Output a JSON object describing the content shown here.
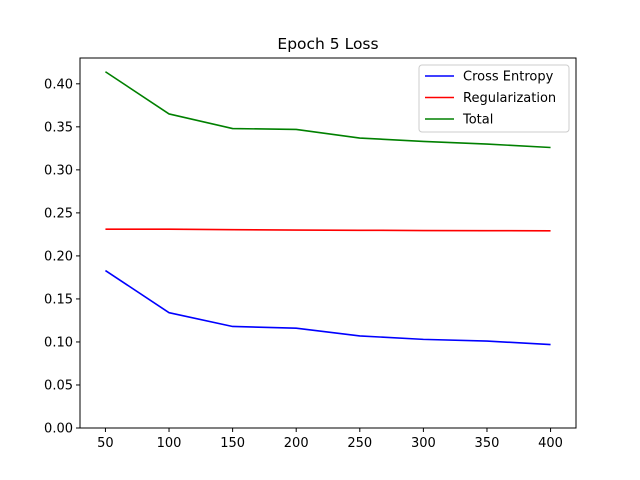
{
  "chart_data": {
    "type": "line",
    "title": "Epoch 5 Loss",
    "xlabel": "",
    "ylabel": "",
    "x": [
      50,
      100,
      150,
      200,
      250,
      300,
      350,
      400
    ],
    "xlim": [
      30,
      420
    ],
    "ylim": [
      0.0,
      0.43
    ],
    "xticks": [
      50,
      100,
      150,
      200,
      250,
      300,
      350,
      400
    ],
    "yticks": [
      0.0,
      0.05,
      0.1,
      0.15,
      0.2,
      0.25,
      0.3,
      0.35,
      0.4
    ],
    "ytick_labels": [
      "0.00",
      "0.05",
      "0.10",
      "0.15",
      "0.20",
      "0.25",
      "0.30",
      "0.35",
      "0.40"
    ],
    "grid": false,
    "legend_position": "top-right",
    "series": [
      {
        "name": "Cross Entropy",
        "color": "#0000ff",
        "values": [
          0.183,
          0.134,
          0.118,
          0.116,
          0.107,
          0.103,
          0.101,
          0.097
        ]
      },
      {
        "name": "Regularization",
        "color": "#ff0000",
        "values": [
          0.231,
          0.231,
          0.2305,
          0.23,
          0.2298,
          0.2295,
          0.2293,
          0.2292
        ]
      },
      {
        "name": "Total",
        "color": "#008000",
        "values": [
          0.414,
          0.365,
          0.348,
          0.347,
          0.337,
          0.333,
          0.33,
          0.326
        ]
      }
    ]
  }
}
